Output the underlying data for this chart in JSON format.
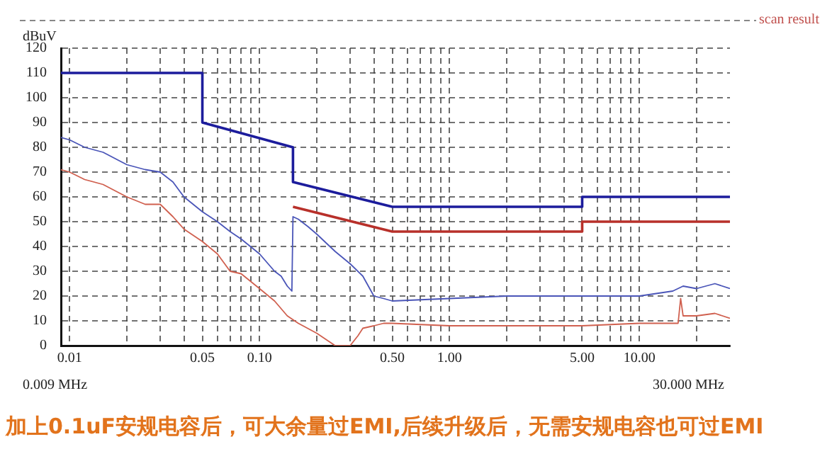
{
  "chart_data": {
    "type": "line",
    "title": "scan result",
    "ylabel": "dBuV",
    "annotations": [
      "0.009 MHz",
      "30.000 MHz",
      "加上0.1uF安规电容后，可大余量过EMI,后续升级后，无需安规电容也可过EMI"
    ],
    "log": "x",
    "grid": true,
    "xlim": [
      0.009,
      30
    ],
    "ylim": [
      0,
      120
    ],
    "yticks": [
      0,
      10,
      20,
      30,
      40,
      50,
      60,
      70,
      80,
      90,
      100,
      110,
      120
    ],
    "xticks": [
      {
        "value": 0.01,
        "label": "0.01"
      },
      {
        "value": 0.02,
        "label": null
      },
      {
        "value": 0.03,
        "label": null
      },
      {
        "value": 0.04,
        "label": null
      },
      {
        "value": 0.05,
        "label": "0.05"
      },
      {
        "value": 0.06,
        "label": null
      },
      {
        "value": 0.07,
        "label": null
      },
      {
        "value": 0.08,
        "label": null
      },
      {
        "value": 0.09,
        "label": null
      },
      {
        "value": 0.1,
        "label": "0.10"
      },
      {
        "value": 0.2,
        "label": null
      },
      {
        "value": 0.3,
        "label": null
      },
      {
        "value": 0.4,
        "label": null
      },
      {
        "value": 0.5,
        "label": "0.50"
      },
      {
        "value": 0.6,
        "label": null
      },
      {
        "value": 0.7,
        "label": null
      },
      {
        "value": 0.8,
        "label": null
      },
      {
        "value": 0.9,
        "label": null
      },
      {
        "value": 1,
        "label": "1.00"
      },
      {
        "value": 2,
        "label": null
      },
      {
        "value": 3,
        "label": null
      },
      {
        "value": 4,
        "label": null
      },
      {
        "value": 5,
        "label": "5.00"
      },
      {
        "value": 6,
        "label": null
      },
      {
        "value": 7,
        "label": null
      },
      {
        "value": 8,
        "label": null
      },
      {
        "value": 9,
        "label": null
      },
      {
        "value": 10,
        "label": "10.00"
      },
      {
        "value": 20,
        "label": null
      }
    ],
    "series": [
      {
        "color": "#1c1c9c",
        "x": [
          0.009,
          0.05,
          0.05,
          0.15,
          0.15,
          0.5,
          5,
          5,
          30
        ],
        "values": [
          110,
          110,
          90,
          80,
          66,
          56,
          56,
          60,
          60
        ]
      },
      {
        "color": "#b8302a",
        "x": [
          0.15,
          0.5,
          5,
          5,
          30
        ],
        "values": [
          56,
          46,
          46,
          50,
          50
        ]
      },
      {
        "color": "#4a55b8",
        "x": [
          0.009,
          0.01,
          0.012,
          0.015,
          0.02,
          0.025,
          0.03,
          0.035,
          0.04,
          0.05,
          0.06,
          0.07,
          0.08,
          0.1,
          0.12,
          0.13,
          0.14,
          0.148,
          0.15,
          0.16,
          0.18,
          0.2,
          0.25,
          0.3,
          0.35,
          0.4,
          0.45,
          0.5,
          1,
          2,
          5,
          10,
          15,
          17,
          20,
          25,
          30
        ],
        "values": [
          84,
          83,
          80,
          78,
          73,
          71,
          70,
          66,
          60,
          54,
          50,
          46,
          43,
          37,
          30,
          28,
          24,
          22,
          52,
          51,
          48,
          45,
          38,
          33,
          28,
          20,
          19,
          18,
          19,
          20,
          20,
          20,
          22,
          24,
          23,
          25,
          23
        ]
      },
      {
        "color": "#d0604f",
        "x": [
          0.009,
          0.01,
          0.012,
          0.015,
          0.02,
          0.025,
          0.03,
          0.035,
          0.04,
          0.05,
          0.06,
          0.07,
          0.08,
          0.1,
          0.12,
          0.14,
          0.16,
          0.2,
          0.25,
          0.3,
          0.33,
          0.35,
          0.4,
          0.45,
          0.5,
          1,
          2,
          5,
          10,
          16,
          16.5,
          17,
          20,
          25,
          30
        ],
        "values": [
          71,
          70,
          67,
          65,
          60,
          57,
          57,
          52,
          47,
          42,
          37,
          30,
          29,
          23,
          18,
          12,
          9,
          5,
          0,
          0,
          4,
          7,
          8,
          9,
          9,
          8,
          8,
          8,
          9,
          9,
          19,
          12,
          12,
          13,
          11
        ]
      }
    ]
  }
}
